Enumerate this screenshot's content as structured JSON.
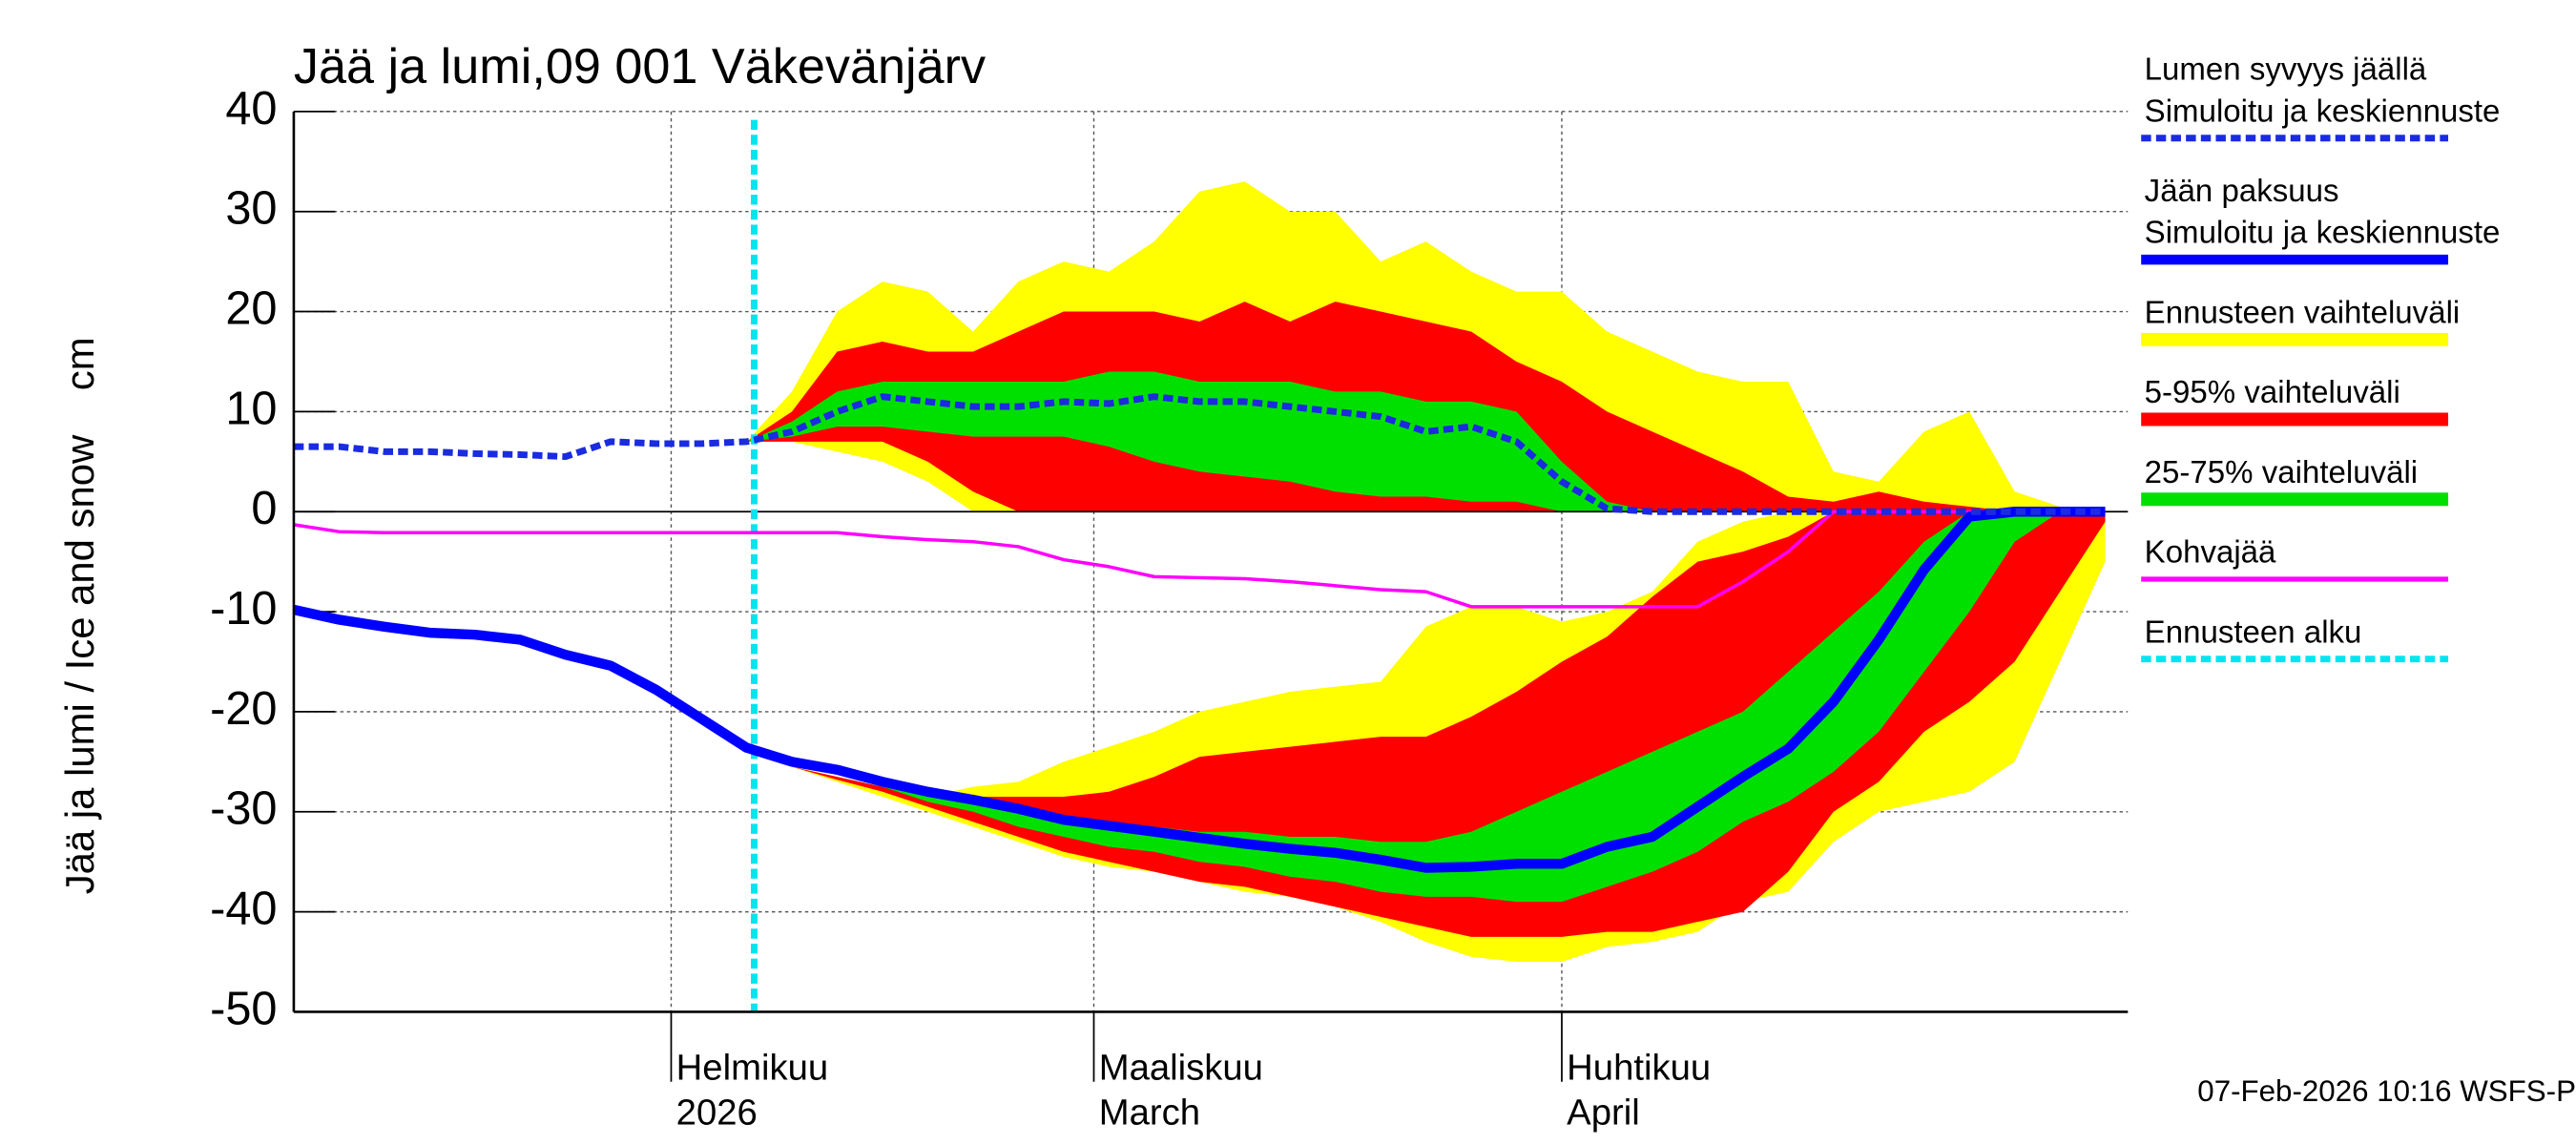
{
  "chart_data": {
    "type": "band-line",
    "title": "Jää ja lumi,09 001 Väkevänjärv",
    "ylabel": "Jää ja lumi / Ice and snow",
    "yunit": "cm",
    "footer": "07-Feb-2026 10:16 WSFS-P",
    "grid": true,
    "legend": "right",
    "xlim": [
      7,
      128.5
    ],
    "xticks": [
      {
        "value": 32,
        "label": [
          "Helmikuu",
          "2026"
        ]
      },
      {
        "value": 60,
        "label": [
          "Maaliskuu",
          "March"
        ]
      },
      {
        "value": 91,
        "label": [
          "Huhtikuu",
          "April"
        ]
      }
    ],
    "ylim": [
      -50,
      40
    ],
    "yticks": [
      -50,
      -40,
      -30,
      -20,
      -10,
      0,
      10,
      20,
      30,
      40
    ],
    "x": [
      7,
      10,
      13,
      16,
      19,
      22,
      25,
      28,
      31,
      34,
      37,
      40,
      43,
      46,
      49,
      52,
      55,
      58,
      61,
      64,
      67,
      70,
      73,
      76,
      79,
      82,
      85,
      88,
      91,
      94,
      97,
      100,
      103,
      106,
      109,
      112,
      115,
      118,
      121,
      124,
      127
    ],
    "bands": [
      {
        "name": "Ennusteen vaihteluväli",
        "color": "#ffff00",
        "snow_high": [
          null,
          null,
          null,
          null,
          null,
          null,
          null,
          null,
          null,
          null,
          7,
          12,
          20,
          23,
          22,
          18,
          23,
          25,
          24,
          27,
          32,
          33,
          30,
          30,
          25,
          27,
          24,
          22,
          22,
          18,
          16,
          14,
          13,
          13,
          4,
          3,
          8,
          10,
          2,
          0.5,
          0
        ],
        "snow_low": [
          null,
          null,
          null,
          null,
          null,
          null,
          null,
          null,
          null,
          null,
          7,
          7,
          6,
          5,
          3,
          0,
          0,
          0,
          0,
          0,
          0,
          0,
          0,
          0,
          0,
          0,
          0,
          0,
          0,
          0,
          0,
          0,
          0,
          0,
          0,
          0,
          0,
          0,
          0,
          0,
          0
        ],
        "ice_high": [
          null,
          null,
          null,
          null,
          null,
          null,
          null,
          null,
          null,
          null,
          -24,
          -25.5,
          -26.5,
          -27.5,
          -28.5,
          -27.5,
          -27,
          -25,
          -23.5,
          -22,
          -20,
          -19,
          -18,
          -17.5,
          -17,
          -11.5,
          -9.5,
          -9.5,
          -11,
          -10,
          -8,
          -3,
          -1,
          0,
          0,
          0,
          0,
          0,
          0,
          0,
          0
        ],
        "ice_low": [
          null,
          null,
          null,
          null,
          null,
          null,
          null,
          null,
          null,
          null,
          -24,
          -25.5,
          -27,
          -28.5,
          -30,
          -31.5,
          -33,
          -34.5,
          -35.5,
          -36,
          -37,
          -38,
          -38.5,
          -39.5,
          -41,
          -43,
          -44.5,
          -45,
          -45,
          -43.5,
          -43,
          -42,
          -39,
          -38,
          -33,
          -30,
          -29,
          -28,
          -25,
          -15,
          -5
        ]
      },
      {
        "name": "5-95% vaihteluväli",
        "color": "#ff0000",
        "snow_high": [
          null,
          null,
          null,
          null,
          null,
          null,
          null,
          null,
          null,
          null,
          7,
          10,
          16,
          17,
          16,
          16,
          18,
          20,
          20,
          20,
          19,
          21,
          19,
          21,
          20,
          19,
          18,
          15,
          13,
          10,
          8,
          6,
          4,
          1.5,
          1,
          2,
          1,
          0.5,
          0,
          0,
          0
        ],
        "snow_low": [
          null,
          null,
          null,
          null,
          null,
          null,
          null,
          null,
          null,
          null,
          7,
          7,
          7,
          7,
          5,
          2,
          0,
          0,
          0,
          0,
          0,
          0,
          0,
          0,
          0,
          0,
          0,
          0,
          0,
          0,
          0,
          0,
          0,
          0,
          0,
          0,
          0,
          0,
          0,
          0,
          0
        ],
        "ice_high": [
          null,
          null,
          null,
          null,
          null,
          null,
          null,
          null,
          null,
          null,
          -24,
          -25.5,
          -26.5,
          -27.5,
          -28.5,
          -28.5,
          -28.5,
          -28.5,
          -28,
          -26.5,
          -24.5,
          -24,
          -23.5,
          -23,
          -22.5,
          -22.5,
          -20.5,
          -18,
          -15,
          -12.5,
          -8.5,
          -5,
          -4,
          -2.5,
          0,
          0,
          0,
          0,
          0,
          0,
          0
        ],
        "ice_low": [
          null,
          null,
          null,
          null,
          null,
          null,
          null,
          null,
          null,
          null,
          -24,
          -25.5,
          -26.8,
          -28,
          -29.5,
          -31,
          -32.5,
          -34,
          -35,
          -36,
          -37,
          -37.5,
          -38.5,
          -39.5,
          -40.5,
          -41.5,
          -42.5,
          -42.5,
          -42.5,
          -42,
          -42,
          -41,
          -40,
          -36,
          -30,
          -27,
          -22,
          -19,
          -15,
          -8,
          -1
        ]
      },
      {
        "name": "25-75% vaihteluväli",
        "color": "#00e000",
        "snow_high": [
          null,
          null,
          null,
          null,
          null,
          null,
          null,
          null,
          null,
          null,
          7,
          9,
          12,
          13,
          13,
          13,
          13,
          13,
          14,
          14,
          13,
          13,
          13,
          12,
          12,
          11,
          11,
          10,
          5,
          1,
          0,
          0,
          0,
          0,
          0,
          0,
          0,
          0,
          0,
          0,
          0
        ],
        "snow_low": [
          null,
          null,
          null,
          null,
          null,
          null,
          null,
          null,
          null,
          null,
          7,
          7.5,
          8.5,
          8.5,
          8,
          7.5,
          7.5,
          7.5,
          6.5,
          5,
          4,
          3.5,
          3,
          2,
          1.5,
          1.5,
          1,
          1,
          0,
          0,
          0,
          0,
          0,
          0,
          0,
          0,
          0,
          0,
          0,
          0,
          0
        ],
        "ice_high": [
          null,
          null,
          null,
          null,
          null,
          null,
          null,
          null,
          null,
          null,
          -24,
          -25,
          -26,
          -27,
          -28,
          -28.5,
          -29.5,
          -30.5,
          -31,
          -31.5,
          -32,
          -32,
          -32.5,
          -32.5,
          -33,
          -33,
          -32,
          -30,
          -28,
          -26,
          -24,
          -22,
          -20,
          -16,
          -12,
          -8,
          -3,
          0,
          0,
          0,
          0
        ],
        "ice_low": [
          null,
          null,
          null,
          null,
          null,
          null,
          null,
          null,
          null,
          null,
          -24,
          -25.2,
          -26.3,
          -27.5,
          -29,
          -30,
          -31.5,
          -32.5,
          -33.5,
          -34,
          -35,
          -35.5,
          -36.5,
          -37,
          -38,
          -38.5,
          -38.5,
          -39,
          -39,
          -37.5,
          -36,
          -34,
          -31,
          -29,
          -26,
          -22,
          -16,
          -10,
          -3,
          0,
          0
        ]
      }
    ],
    "series": [
      {
        "name": [
          "Lumen syvyys jäällä",
          "Simuloitu ja keskiennuste"
        ],
        "color": "#1a2be0",
        "style": "dashed",
        "width": 4,
        "values": [
          6.5,
          6.5,
          6,
          6,
          5.8,
          5.7,
          5.5,
          7,
          6.8,
          6.8,
          7,
          8,
          10,
          11.5,
          11,
          10.5,
          10.5,
          11,
          10.8,
          11.5,
          11,
          11,
          10.5,
          10,
          9.5,
          8,
          8.5,
          7,
          3,
          0.3,
          0,
          0,
          0,
          0,
          0,
          0,
          0,
          0,
          0,
          0,
          0
        ]
      },
      {
        "name": [
          "Jään paksuus",
          "Simuloitu ja keskiennuste"
        ],
        "color": "#0000ff",
        "style": "solid",
        "width": 6,
        "values": [
          -9.8,
          -10.8,
          -11.5,
          -12.1,
          -12.3,
          -12.8,
          -14.3,
          -15.4,
          -17.8,
          -20.7,
          -23.6,
          -25,
          -25.8,
          -27,
          -28,
          -28.8,
          -29.7,
          -30.8,
          -31.4,
          -32,
          -32.6,
          -33.2,
          -33.7,
          -34.1,
          -34.8,
          -35.6,
          -35.5,
          -35.2,
          -35.2,
          -33.5,
          -32.5,
          -29.5,
          -26.5,
          -23.7,
          -19,
          -12.8,
          -5.8,
          -0.5,
          0,
          0,
          0
        ]
      },
      {
        "name": [
          "Kohvajää"
        ],
        "color": "#ff00ff",
        "style": "solid",
        "width": 2,
        "values": [
          -1.3,
          -2,
          -2.1,
          -2.1,
          -2.1,
          -2.1,
          -2.1,
          -2.1,
          -2.1,
          -2.1,
          -2.1,
          -2.1,
          -2.1,
          -2.5,
          -2.8,
          -3,
          -3.5,
          -4.8,
          -5.5,
          -6.5,
          -6.6,
          -6.7,
          -7,
          -7.4,
          -7.8,
          -8,
          -9.5,
          -9.5,
          -9.5,
          -9.5,
          -9.5,
          -9.5,
          -7,
          -4,
          0,
          0,
          0,
          0,
          0,
          0,
          0
        ]
      }
    ],
    "forecast_start": {
      "name": [
        "Ennusteen alku"
      ],
      "color": "#00e5ee",
      "style": "dashed",
      "width": 4,
      "x": 37.5
    }
  }
}
